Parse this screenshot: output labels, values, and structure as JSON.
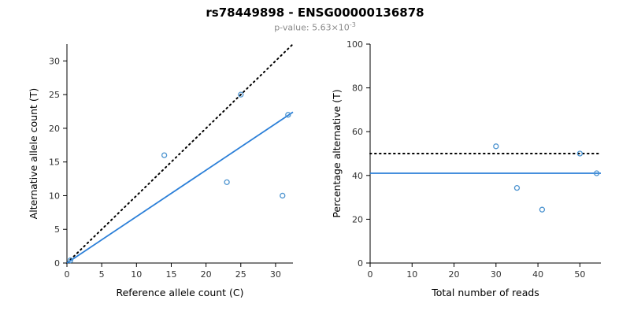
{
  "header": {
    "title": "rs78449898 - ENSG00000136878",
    "subtitle": {
      "prefix": "p-value: 5.63×10",
      "exponent": "-3"
    }
  },
  "colors": {
    "point_blue": "#4d94d0",
    "line_blue": "#2b7fd8",
    "identity_black": "#000000",
    "axis": "#000000",
    "tick_label": "#303030",
    "subtitle_gray": "#8a8a8a"
  },
  "chart_data": [
    {
      "type": "scatter",
      "title": "",
      "xlabel": "Reference allele count (C)",
      "ylabel": "Alternative allele count (T)",
      "xlim": [
        0,
        32.5
      ],
      "ylim": [
        0,
        32.5
      ],
      "xticks": [
        0,
        5,
        10,
        15,
        20,
        25,
        30
      ],
      "yticks": [
        0,
        5,
        10,
        15,
        20,
        25,
        30
      ],
      "grid": false,
      "point_color": "#4d94d0",
      "points": [
        [
          0.5,
          0.4
        ],
        [
          14,
          16
        ],
        [
          23,
          12
        ],
        [
          25,
          25
        ],
        [
          31,
          10
        ],
        [
          31.8,
          22
        ]
      ],
      "lines": [
        {
          "name": "identity",
          "style": "dotted",
          "color": "#000000",
          "from": [
            0,
            0
          ],
          "to": [
            32.5,
            32.5
          ]
        },
        {
          "name": "fit",
          "style": "solid",
          "color": "#2b7fd8",
          "from": [
            0,
            0
          ],
          "to": [
            32.5,
            22.4
          ]
        }
      ]
    },
    {
      "type": "scatter",
      "title": "",
      "xlabel": "Total number of reads",
      "ylabel": "Percentage alternative (T)",
      "xlim": [
        0,
        55
      ],
      "ylim": [
        0,
        100
      ],
      "xticks": [
        0,
        10,
        20,
        30,
        40,
        50
      ],
      "yticks": [
        0,
        20,
        40,
        60,
        80,
        100
      ],
      "grid": false,
      "point_color": "#4d94d0",
      "points": [
        [
          30,
          53.3
        ],
        [
          35,
          34.3
        ],
        [
          41,
          24.4
        ],
        [
          50,
          50
        ],
        [
          54,
          41
        ]
      ],
      "lines": [
        {
          "name": "expected",
          "style": "dotted",
          "color": "#000000",
          "from": [
            0,
            50
          ],
          "to": [
            55,
            50
          ]
        },
        {
          "name": "observed",
          "style": "solid",
          "color": "#2b7fd8",
          "from": [
            0,
            41
          ],
          "to": [
            55,
            41
          ]
        }
      ]
    }
  ]
}
